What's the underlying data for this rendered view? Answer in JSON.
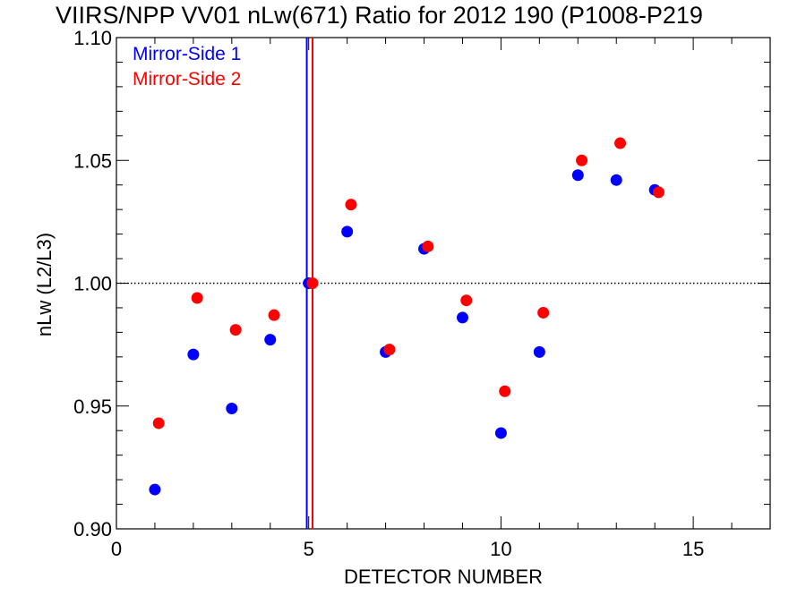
{
  "chart_data": {
    "type": "scatter",
    "title": "VIIRS/NPP VV01 nLw(671) Ratio for 2012 190 (P1008-P219",
    "xlabel": "DETECTOR NUMBER",
    "ylabel": "nLw (L2/L3)",
    "xlim": [
      0,
      17
    ],
    "ylim": [
      0.9,
      1.1
    ],
    "x_ticks": [
      "0",
      "5",
      "10",
      "15"
    ],
    "y_ticks": [
      "0.90",
      "0.95",
      "1.00",
      "1.05",
      "1.10"
    ],
    "reference_line": 1.0,
    "legend": "top-left",
    "series": [
      {
        "name": "Mirror-Side 1",
        "color": "#0000ff",
        "marker_line": 4.95,
        "points": [
          [
            1,
            0.916
          ],
          [
            2,
            0.971
          ],
          [
            3,
            0.949
          ],
          [
            4,
            0.977
          ],
          [
            5,
            1.0
          ],
          [
            6,
            1.021
          ],
          [
            7,
            0.972
          ],
          [
            8,
            1.014
          ],
          [
            9,
            0.986
          ],
          [
            10,
            0.939
          ],
          [
            11,
            0.972
          ],
          [
            12,
            1.044
          ],
          [
            13,
            1.042
          ],
          [
            14,
            1.038
          ]
        ]
      },
      {
        "name": "Mirror-Side 2",
        "color": "#ff0000",
        "marker_line": 5.1,
        "points": [
          [
            1.1,
            0.943
          ],
          [
            2.1,
            0.994
          ],
          [
            3.1,
            0.981
          ],
          [
            4.1,
            0.987
          ],
          [
            5.1,
            1.0
          ],
          [
            6.1,
            1.032
          ],
          [
            7.1,
            0.973
          ],
          [
            8.1,
            1.015
          ],
          [
            9.1,
            0.993
          ],
          [
            10.1,
            0.956
          ],
          [
            11.1,
            0.988
          ],
          [
            12.1,
            1.05
          ],
          [
            13.1,
            1.057
          ],
          [
            14.1,
            1.037
          ]
        ]
      }
    ]
  }
}
